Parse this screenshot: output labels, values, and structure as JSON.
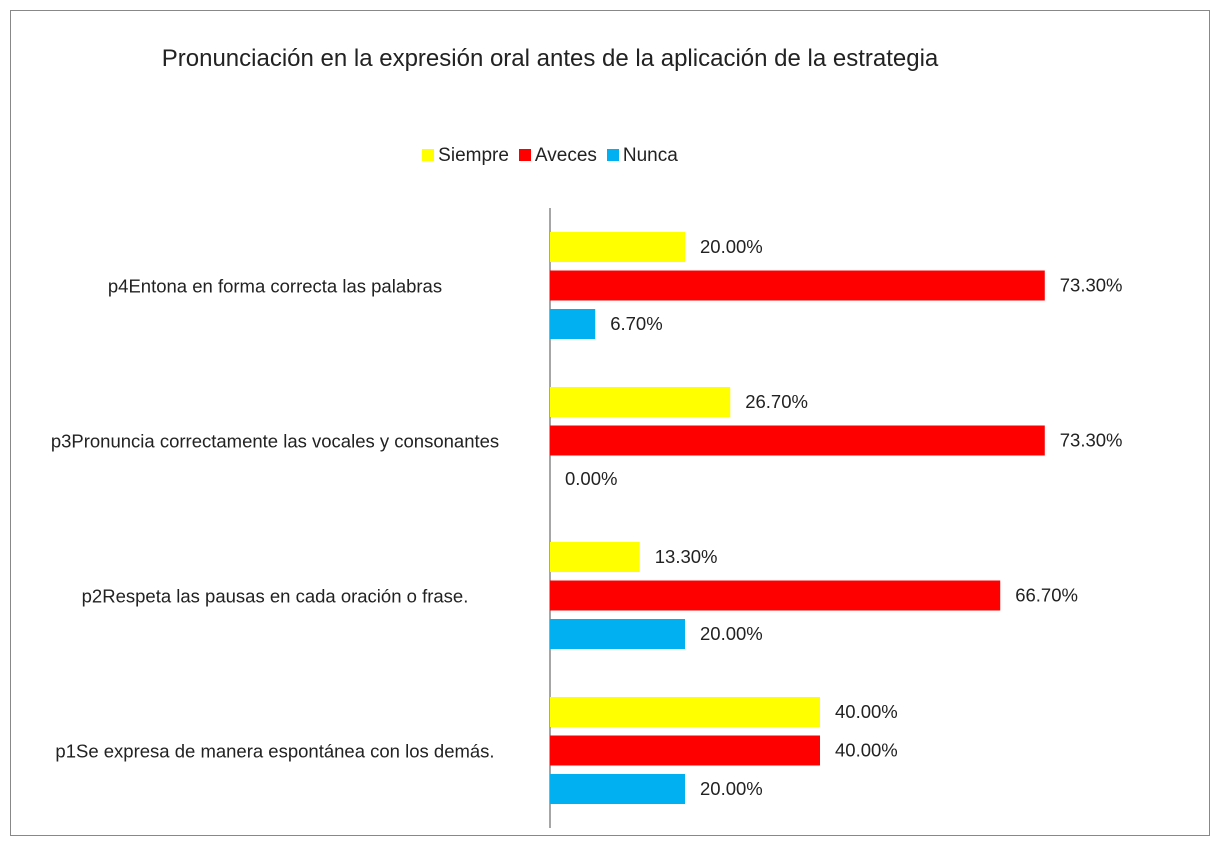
{
  "chart_data": {
    "type": "bar",
    "orientation": "horizontal",
    "title": "Pronunciación en la expresión oral antes de la aplicación de la estrategia",
    "categories": [
      "p4Entona en forma correcta las palabras",
      "p3Pronuncia correctamente las vocales y consonantes",
      "p2Respeta las pausas en cada oración o frase.",
      "p1Se expresa de manera espontánea con los demás."
    ],
    "series": [
      {
        "name": "Siempre",
        "color": "#ffff00",
        "values": [
          20,
          26.7,
          13.3,
          40
        ],
        "value_labels": [
          "20.00%",
          "26.70%",
          "13.30%",
          "40.00%"
        ]
      },
      {
        "name": "Aveces",
        "color": "#ff0000",
        "values": [
          73.3,
          73.3,
          66.7,
          40
        ],
        "value_labels": [
          "73.30%",
          "73.30%",
          "66.70%",
          "40.00%"
        ]
      },
      {
        "name": "Nunca",
        "color": "#00b0f0",
        "values": [
          6.7,
          0,
          20,
          20
        ],
        "value_labels": [
          "6.70%",
          "0.00%",
          "20.00%",
          "20.00%"
        ]
      }
    ],
    "xlim": [
      0,
      80
    ],
    "legend": "top"
  }
}
